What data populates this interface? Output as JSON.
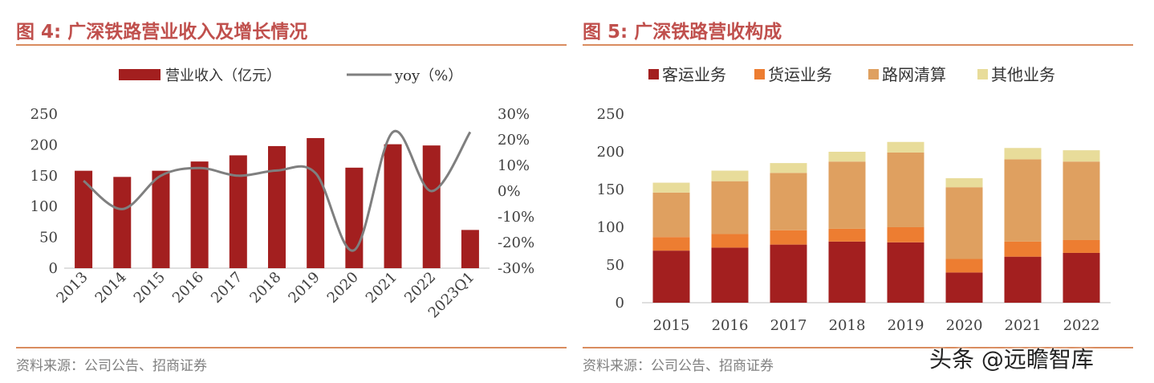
{
  "left": {
    "title": "图 4:  广深铁路营业收入及增长情况",
    "source": "资料来源：公司公告、招商证券",
    "legend": {
      "bar_label": "营业收入（亿元）",
      "line_label": "yoy（%）"
    }
  },
  "right": {
    "title": "图 5:  广深铁路营收构成",
    "source": "资料来源：公司公告、招商证券"
  },
  "watermark": "头条 @远瞻智库",
  "colors": {
    "title": "#C0504D",
    "bar": "#A31F1F",
    "line": "#7F7F7F",
    "passenger": "#A31F1F",
    "freight": "#ED7D31",
    "network": "#DFA060",
    "other": "#E8DC9A"
  },
  "chart_data": [
    {
      "type": "bar",
      "categories": [
        "2013",
        "2014",
        "2015",
        "2016",
        "2017",
        "2018",
        "2019",
        "2020",
        "2021",
        "2022",
        "2023Q1"
      ],
      "series": [
        {
          "name": "营业收入（亿元）",
          "axis": "left",
          "type": "bar",
          "values": [
            158,
            148,
            158,
            173,
            183,
            198,
            211,
            163,
            201,
            199,
            62
          ]
        },
        {
          "name": "yoy（%）",
          "axis": "right",
          "type": "line",
          "values": [
            4,
            -7,
            6,
            9,
            6,
            8,
            7,
            -23,
            23,
            0,
            23
          ]
        }
      ],
      "ylim": [
        0,
        250
      ],
      "y_ticks": [
        "0",
        "50",
        "100",
        "150",
        "200",
        "250"
      ],
      "y2lim": [
        -30,
        30
      ],
      "y2_ticks": [
        "-30%",
        "-20%",
        "-10%",
        "0%",
        "10%",
        "20%",
        "30%"
      ],
      "grid": false,
      "legend": "top"
    },
    {
      "type": "bar",
      "stacked": true,
      "categories": [
        "2015",
        "2016",
        "2017",
        "2018",
        "2019",
        "2020",
        "2021",
        "2022"
      ],
      "series": [
        {
          "name": "客运业务",
          "values": [
            69,
            73,
            77,
            81,
            80,
            40,
            61,
            66
          ]
        },
        {
          "name": "货运业务",
          "values": [
            18,
            18,
            19,
            17,
            20,
            18,
            20,
            17
          ]
        },
        {
          "name": "路网清算",
          "values": [
            59,
            70,
            76,
            89,
            99,
            95,
            109,
            104
          ]
        },
        {
          "name": "其他业务",
          "values": [
            13,
            14,
            13,
            13,
            14,
            12,
            15,
            15
          ]
        }
      ],
      "ylim": [
        0,
        250
      ],
      "y_ticks": [
        "0",
        "50",
        "100",
        "150",
        "200",
        "250"
      ],
      "grid": false,
      "legend": "top"
    }
  ]
}
